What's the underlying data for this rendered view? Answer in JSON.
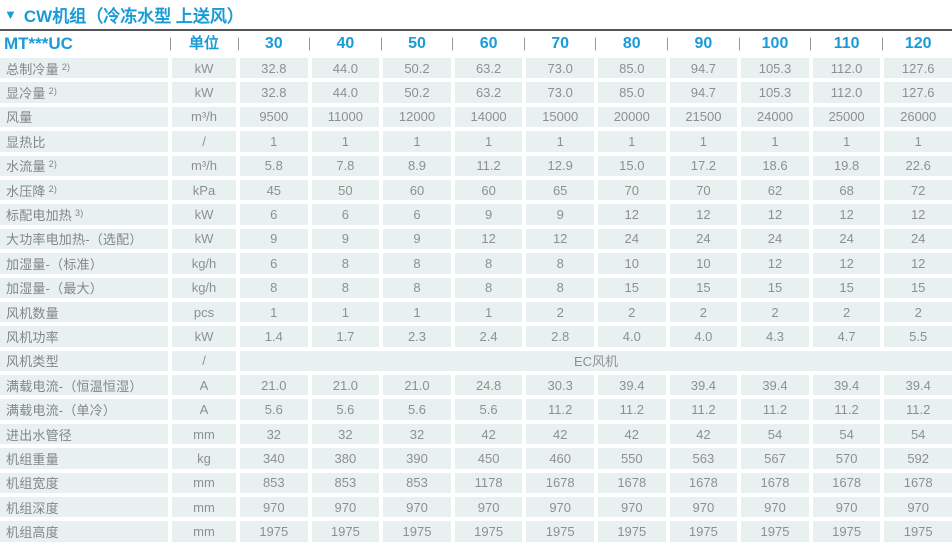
{
  "colors": {
    "accent_blue": "#1a9bd7",
    "cell_background": "#e8f1f0",
    "cell_text": "#8d9091",
    "rule_dark": "#55565a"
  },
  "title": {
    "marker": "▼",
    "text": "CW机组（冷冻水型 上送风）"
  },
  "table": {
    "model_header": "MT***UC",
    "unit_header": "单位",
    "columns": [
      "30",
      "40",
      "50",
      "60",
      "70",
      "80",
      "90",
      "100",
      "110",
      "120"
    ],
    "rows": [
      {
        "label": "总制冷量",
        "sup": "2)",
        "unit": "kW",
        "values": [
          "32.8",
          "44.0",
          "50.2",
          "63.2",
          "73.0",
          "85.0",
          "94.7",
          "105.3",
          "112.0",
          "127.6"
        ]
      },
      {
        "label": "显冷量",
        "sup": "2)",
        "unit": "kW",
        "values": [
          "32.8",
          "44.0",
          "50.2",
          "63.2",
          "73.0",
          "85.0",
          "94.7",
          "105.3",
          "112.0",
          "127.6"
        ]
      },
      {
        "label": "风量",
        "sup": "",
        "unit": "m³/h",
        "values": [
          "9500",
          "11000",
          "12000",
          "14000",
          "15000",
          "20000",
          "21500",
          "24000",
          "25000",
          "26000"
        ]
      },
      {
        "label": "显热比",
        "sup": "",
        "unit": "/",
        "values": [
          "1",
          "1",
          "1",
          "1",
          "1",
          "1",
          "1",
          "1",
          "1",
          "1"
        ]
      },
      {
        "label": "水流量",
        "sup": "2)",
        "unit": "m³/h",
        "values": [
          "5.8",
          "7.8",
          "8.9",
          "11.2",
          "12.9",
          "15.0",
          "17.2",
          "18.6",
          "19.8",
          "22.6"
        ]
      },
      {
        "label": "水压降",
        "sup": "2)",
        "unit": "kPa",
        "values": [
          "45",
          "50",
          "60",
          "60",
          "65",
          "70",
          "70",
          "62",
          "68",
          "72"
        ]
      },
      {
        "label": "标配电加热",
        "sup": "3)",
        "unit": "kW",
        "values": [
          "6",
          "6",
          "6",
          "9",
          "9",
          "12",
          "12",
          "12",
          "12",
          "12"
        ]
      },
      {
        "label": "大功率电加热-（选配）",
        "sup": "",
        "unit": "kW",
        "values": [
          "9",
          "9",
          "9",
          "12",
          "12",
          "24",
          "24",
          "24",
          "24",
          "24"
        ]
      },
      {
        "label": "加湿量-（标准）",
        "sup": "",
        "unit": "kg/h",
        "values": [
          "6",
          "8",
          "8",
          "8",
          "8",
          "10",
          "10",
          "12",
          "12",
          "12"
        ]
      },
      {
        "label": "加湿量-（最大）",
        "sup": "",
        "unit": "kg/h",
        "values": [
          "8",
          "8",
          "8",
          "8",
          "8",
          "15",
          "15",
          "15",
          "15",
          "15"
        ]
      },
      {
        "label": "风机数量",
        "sup": "",
        "unit": "pcs",
        "values": [
          "1",
          "1",
          "1",
          "1",
          "2",
          "2",
          "2",
          "2",
          "2",
          "2"
        ]
      },
      {
        "label": "风机功率",
        "sup": "",
        "unit": "kW",
        "values": [
          "1.4",
          "1.7",
          "2.3",
          "2.4",
          "2.8",
          "4.0",
          "4.0",
          "4.3",
          "4.7",
          "5.5"
        ]
      },
      {
        "label": "风机类型",
        "sup": "",
        "unit": "/",
        "merged": "EC风机"
      },
      {
        "label": "满载电流-（恒温恒湿）",
        "sup": "",
        "unit": "A",
        "values": [
          "21.0",
          "21.0",
          "21.0",
          "24.8",
          "30.3",
          "39.4",
          "39.4",
          "39.4",
          "39.4",
          "39.4"
        ]
      },
      {
        "label": "满载电流-（单冷）",
        "sup": "",
        "unit": "A",
        "values": [
          "5.6",
          "5.6",
          "5.6",
          "5.6",
          "11.2",
          "11.2",
          "11.2",
          "11.2",
          "11.2",
          "11.2"
        ]
      },
      {
        "label": "进出水管径",
        "sup": "",
        "unit": "mm",
        "values": [
          "32",
          "32",
          "32",
          "42",
          "42",
          "42",
          "42",
          "54",
          "54",
          "54"
        ]
      },
      {
        "label": "机组重量",
        "sup": "",
        "unit": "kg",
        "values": [
          "340",
          "380",
          "390",
          "450",
          "460",
          "550",
          "563",
          "567",
          "570",
          "592"
        ]
      },
      {
        "label": "机组宽度",
        "sup": "",
        "unit": "mm",
        "values": [
          "853",
          "853",
          "853",
          "1178",
          "1678",
          "1678",
          "1678",
          "1678",
          "1678",
          "1678"
        ]
      },
      {
        "label": "机组深度",
        "sup": "",
        "unit": "mm",
        "values": [
          "970",
          "970",
          "970",
          "970",
          "970",
          "970",
          "970",
          "970",
          "970",
          "970"
        ]
      },
      {
        "label": "机组高度",
        "sup": "",
        "unit": "mm",
        "values": [
          "1975",
          "1975",
          "1975",
          "1975",
          "1975",
          "1975",
          "1975",
          "1975",
          "1975",
          "1975"
        ]
      }
    ]
  }
}
